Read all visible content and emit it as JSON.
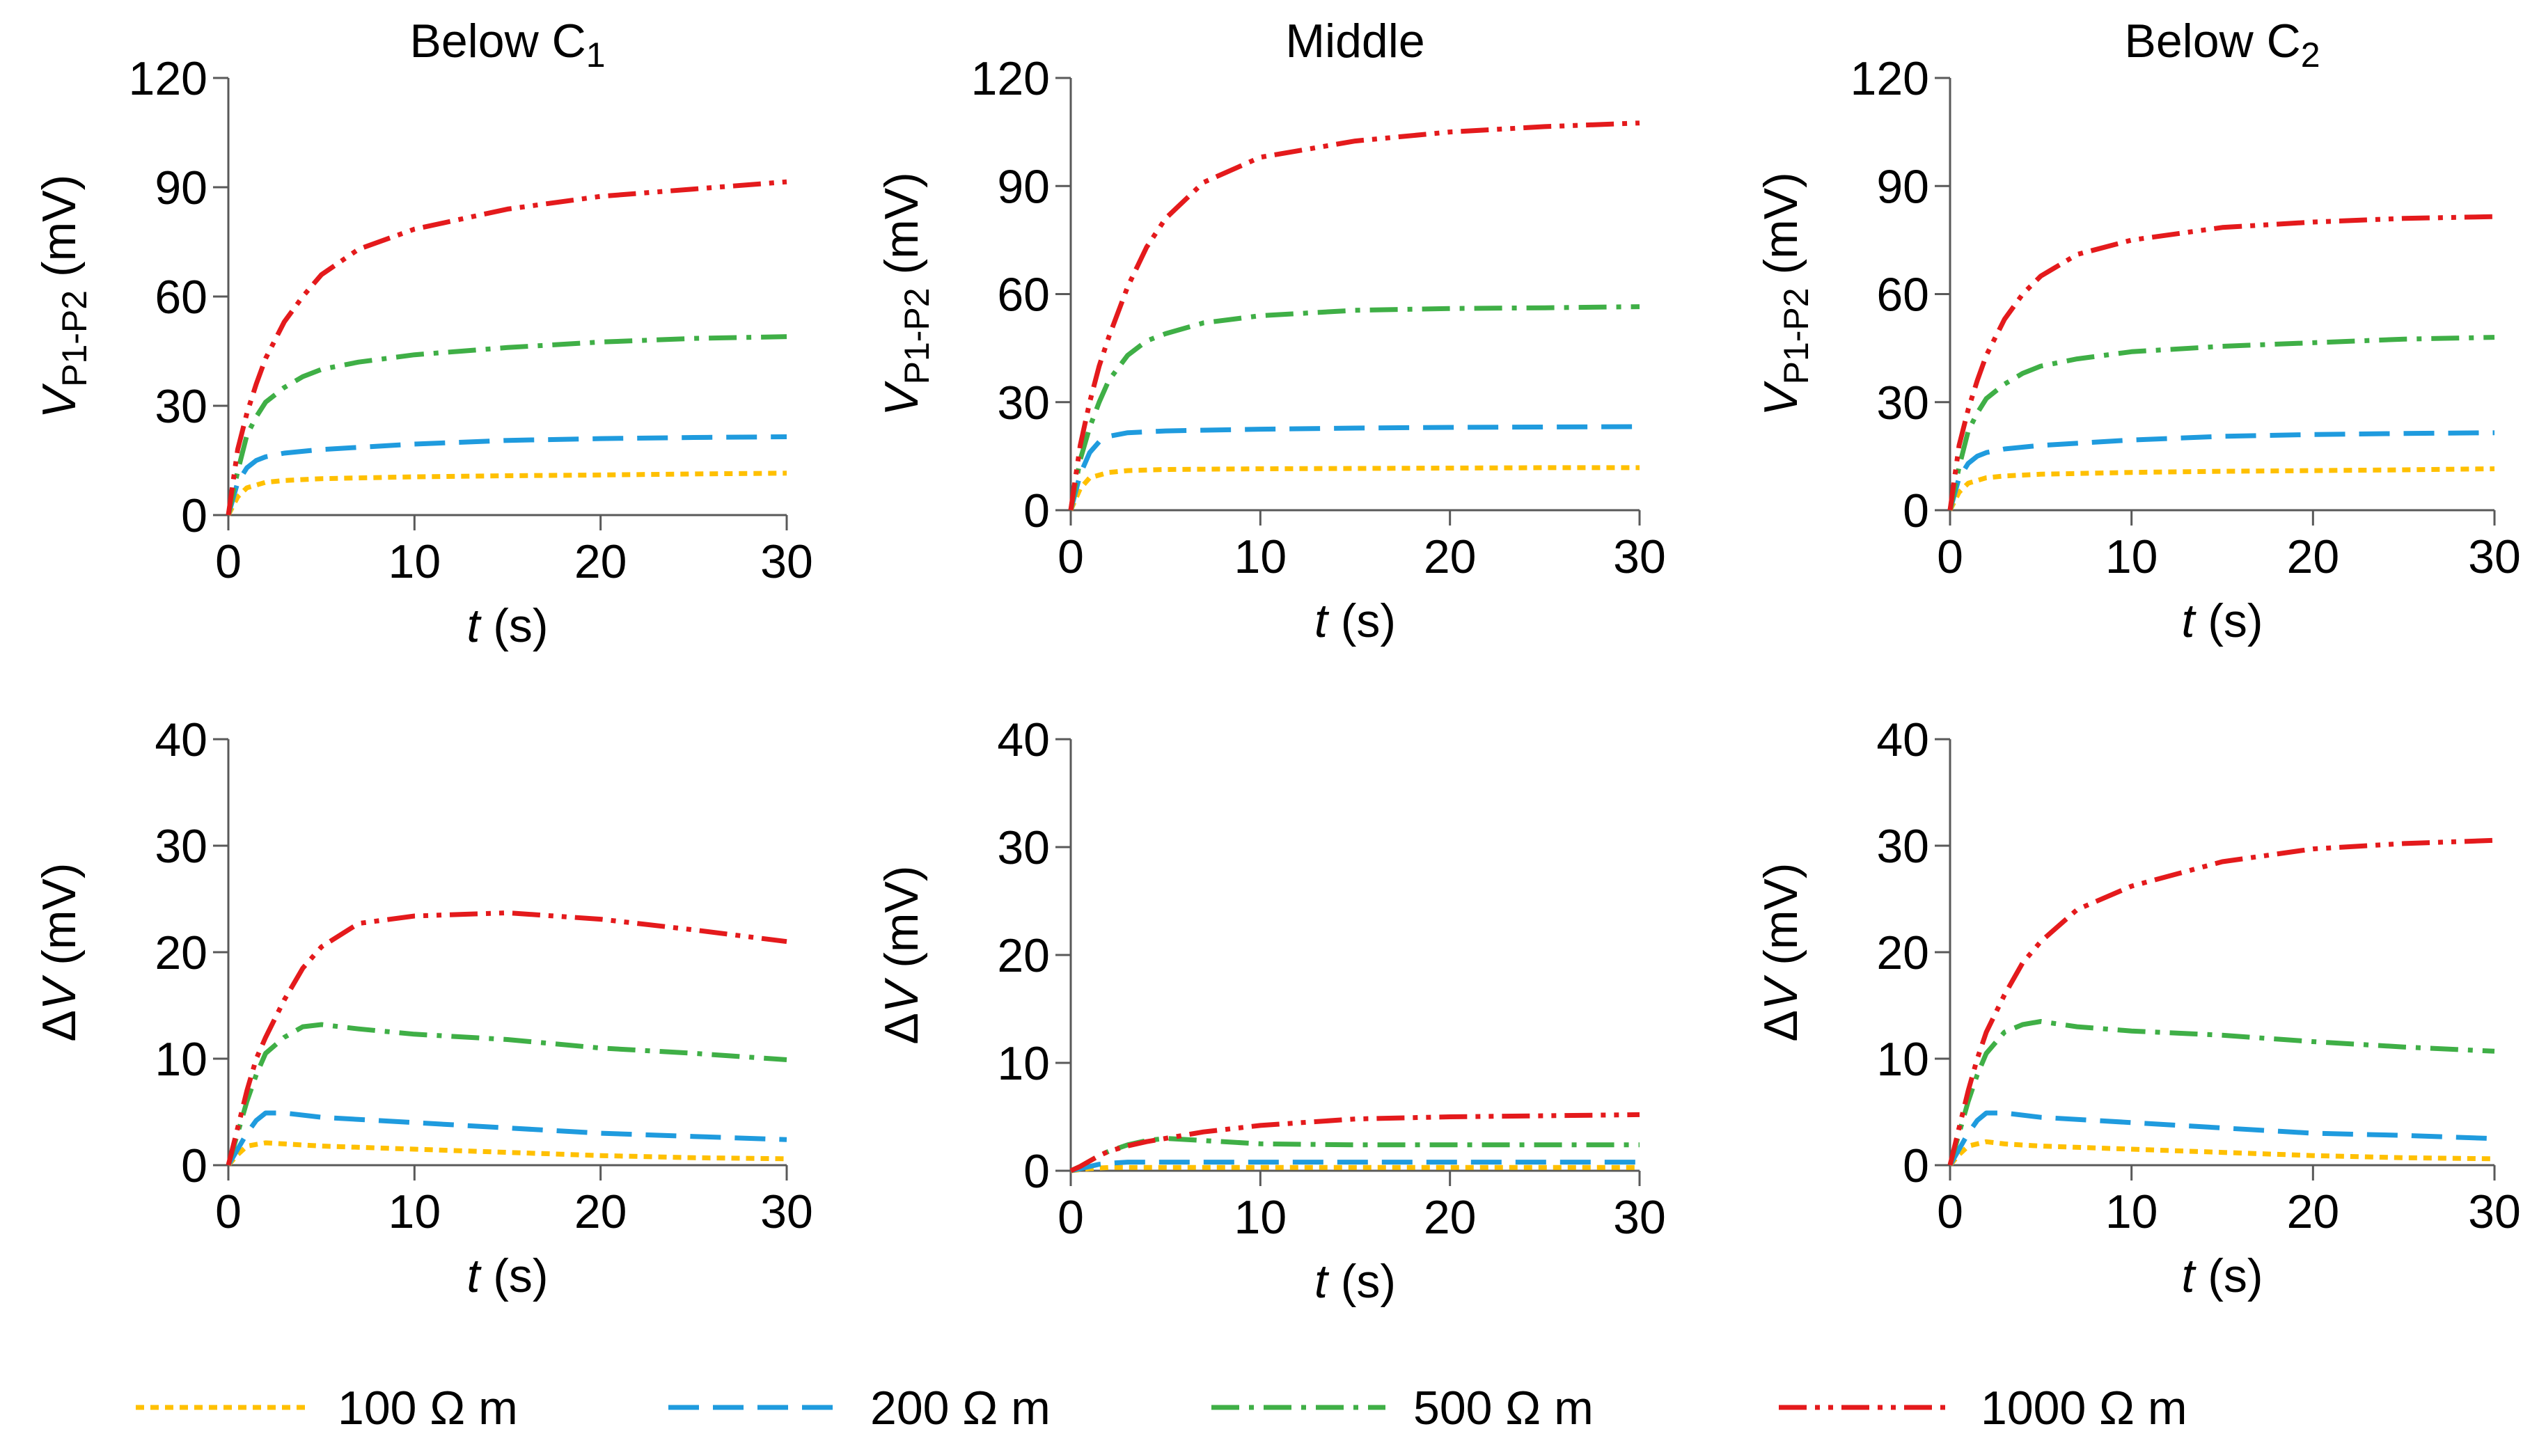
{
  "colors": {
    "r100": "#FFC000",
    "r200": "#1F9BDE",
    "r500": "#3FAF46",
    "r1000": "#E41A1C",
    "axis": "#595959"
  },
  "legend": {
    "items": [
      {
        "key": "r100",
        "label": "100 Ω m"
      },
      {
        "key": "r200",
        "label": "200 Ω m"
      },
      {
        "key": "r500",
        "label": "500 Ω m"
      },
      {
        "key": "r1000",
        "label": "1000 Ω m"
      }
    ]
  },
  "chart_data": [
    {
      "type": "line",
      "id": "p1-below-c1",
      "title": "Below C",
      "title_sub": "1",
      "xlabel": "t",
      "xunit": "(s)",
      "ylabel": "V",
      "ylabel_sub": "P1-P2",
      "yunit": "(mV)",
      "xlim": [
        0,
        30
      ],
      "ylim": [
        0,
        120
      ],
      "xticks": [
        "0",
        "10",
        "20",
        "30"
      ],
      "yticks": [
        "0",
        "30",
        "60",
        "90",
        "120"
      ],
      "series": [
        {
          "name": "100 Ω m",
          "key": "r100",
          "x": [
            0,
            0.5,
            1,
            2,
            3,
            5,
            10,
            15,
            20,
            25,
            30
          ],
          "y": [
            0,
            5,
            7.5,
            9,
            9.5,
            10,
            10.5,
            10.8,
            11,
            11.3,
            11.5
          ]
        },
        {
          "name": "200 Ω m",
          "key": "r200",
          "x": [
            0,
            0.5,
            1,
            1.5,
            2,
            3,
            5,
            10,
            15,
            20,
            25,
            30
          ],
          "y": [
            0,
            9,
            13,
            15,
            16,
            17,
            18,
            19.5,
            20.5,
            21,
            21.3,
            21.5
          ]
        },
        {
          "name": "500 Ω m",
          "key": "r500",
          "x": [
            0,
            0.5,
            1,
            1.5,
            2,
            3,
            4,
            5,
            7,
            10,
            15,
            20,
            25,
            30
          ],
          "y": [
            0,
            12,
            22,
            27,
            31,
            35,
            38,
            40,
            42,
            44,
            46,
            47.5,
            48.5,
            49
          ]
        },
        {
          "name": "1000 Ω m",
          "key": "r1000",
          "x": [
            0,
            0.5,
            1,
            1.5,
            2,
            3,
            4,
            5,
            7,
            10,
            15,
            20,
            25,
            30
          ],
          "y": [
            0,
            18,
            28,
            36,
            43,
            53,
            60,
            66,
            73,
            78.5,
            84,
            87.5,
            89.5,
            91.5
          ]
        }
      ]
    },
    {
      "type": "line",
      "id": "p2-middle",
      "title": "Middle",
      "title_sub": "",
      "xlabel": "t",
      "xunit": "(s)",
      "ylabel": "V",
      "ylabel_sub": "P1-P2",
      "yunit": "(mV)",
      "xlim": [
        0,
        30
      ],
      "ylim": [
        0,
        120
      ],
      "xticks": [
        "0",
        "10",
        "20",
        "30"
      ],
      "yticks": [
        "0",
        "30",
        "60",
        "90",
        "120"
      ],
      "series": [
        {
          "name": "100 Ω m",
          "key": "r100",
          "x": [
            0,
            0.5,
            1,
            2,
            3,
            5,
            10,
            15,
            20,
            25,
            30
          ],
          "y": [
            0,
            6,
            9,
            10.5,
            11,
            11.3,
            11.5,
            11.6,
            11.7,
            11.8,
            11.8
          ]
        },
        {
          "name": "200 Ω m",
          "key": "r200",
          "x": [
            0,
            0.5,
            1,
            1.5,
            2,
            3,
            5,
            10,
            15,
            20,
            25,
            30
          ],
          "y": [
            0,
            10,
            16,
            19,
            20.5,
            21.5,
            22,
            22.5,
            22.8,
            23,
            23.1,
            23.2
          ]
        },
        {
          "name": "500 Ω m",
          "key": "r500",
          "x": [
            0,
            0.5,
            1,
            1.5,
            2,
            3,
            4,
            5,
            7,
            10,
            15,
            20,
            25,
            30
          ],
          "y": [
            0,
            14,
            23,
            30,
            36,
            43,
            47,
            49,
            52,
            54,
            55.5,
            56,
            56.2,
            56.5
          ]
        },
        {
          "name": "1000 Ω m",
          "key": "r1000",
          "x": [
            0,
            0.5,
            1,
            1.5,
            2,
            3,
            4,
            5,
            7,
            10,
            15,
            20,
            25,
            30
          ],
          "y": [
            0,
            18,
            30,
            40,
            48,
            62,
            73,
            81,
            91,
            98,
            102.5,
            105,
            106.5,
            107.5
          ]
        }
      ]
    },
    {
      "type": "line",
      "id": "p3-below-c2",
      "title": "Below C",
      "title_sub": "2",
      "xlabel": "t",
      "xunit": "(s)",
      "ylabel": "V",
      "ylabel_sub": "P1-P2",
      "yunit": "(mV)",
      "xlim": [
        0,
        30
      ],
      "ylim": [
        0,
        120
      ],
      "xticks": [
        "0",
        "10",
        "20",
        "30"
      ],
      "yticks": [
        "0",
        "30",
        "60",
        "90",
        "120"
      ],
      "series": [
        {
          "name": "100 Ω m",
          "key": "r100",
          "x": [
            0,
            0.5,
            1,
            2,
            3,
            5,
            10,
            15,
            20,
            25,
            30
          ],
          "y": [
            0,
            5,
            7.5,
            9,
            9.5,
            10,
            10.5,
            10.8,
            11,
            11.2,
            11.5
          ]
        },
        {
          "name": "200 Ω m",
          "key": "r200",
          "x": [
            0,
            0.5,
            1,
            1.5,
            2,
            3,
            5,
            10,
            15,
            20,
            25,
            30
          ],
          "y": [
            0,
            9,
            13,
            15,
            16,
            17,
            18,
            19.5,
            20.5,
            21,
            21.3,
            21.5
          ]
        },
        {
          "name": "500 Ω m",
          "key": "r500",
          "x": [
            0,
            0.5,
            1,
            1.5,
            2,
            3,
            4,
            5,
            7,
            10,
            15,
            20,
            25,
            30
          ],
          "y": [
            0,
            12,
            22,
            27,
            31,
            35,
            38,
            40,
            42,
            44,
            45.5,
            46.5,
            47.5,
            48
          ]
        },
        {
          "name": "1000 Ω m",
          "key": "r1000",
          "x": [
            0,
            0.5,
            1,
            1.5,
            2,
            3,
            4,
            5,
            7,
            10,
            15,
            20,
            25,
            30
          ],
          "y": [
            0,
            18,
            28,
            36,
            43,
            53,
            60,
            65,
            71,
            75,
            78.5,
            80,
            81,
            81.5
          ]
        }
      ]
    },
    {
      "type": "line",
      "id": "p4-below-c1-dv",
      "title": "",
      "title_sub": "",
      "xlabel": "t",
      "xunit": "(s)",
      "ylabel": "ΔV",
      "ylabel_sub": "",
      "yunit": "(mV)",
      "xlim": [
        0,
        30
      ],
      "ylim": [
        0,
        40
      ],
      "xticks": [
        "0",
        "10",
        "20",
        "30"
      ],
      "yticks": [
        "0",
        "10",
        "20",
        "30",
        "40"
      ],
      "series": [
        {
          "name": "100 Ω m",
          "key": "r100",
          "x": [
            0,
            0.5,
            1,
            2,
            3,
            5,
            10,
            15,
            20,
            25,
            30
          ],
          "y": [
            0,
            1,
            1.8,
            2.1,
            2,
            1.8,
            1.5,
            1.2,
            0.9,
            0.7,
            0.6
          ]
        },
        {
          "name": "200 Ω m",
          "key": "r200",
          "x": [
            0,
            0.5,
            1,
            1.5,
            2,
            3,
            5,
            10,
            15,
            20,
            25,
            30
          ],
          "y": [
            0,
            1.5,
            3,
            4.2,
            4.9,
            4.9,
            4.5,
            4,
            3.5,
            3,
            2.7,
            2.4
          ]
        },
        {
          "name": "500 Ω m",
          "key": "r500",
          "x": [
            0,
            0.5,
            1,
            1.5,
            2,
            3,
            4,
            5,
            7,
            10,
            15,
            20,
            25,
            30
          ],
          "y": [
            0,
            3,
            6,
            8.5,
            10.5,
            12,
            13,
            13.2,
            12.8,
            12.3,
            11.8,
            11,
            10.5,
            9.9
          ]
        },
        {
          "name": "1000 Ω m",
          "key": "r1000",
          "x": [
            0,
            0.5,
            1,
            1.5,
            2,
            3,
            4,
            5,
            7,
            10,
            15,
            20,
            25,
            30
          ],
          "y": [
            0,
            3.5,
            7,
            10,
            12,
            15.5,
            18.5,
            20.5,
            22.7,
            23.4,
            23.7,
            23.1,
            22.1,
            21
          ]
        }
      ]
    },
    {
      "type": "line",
      "id": "p5-middle-dv",
      "title": "",
      "title_sub": "",
      "xlabel": "t",
      "xunit": "(s)",
      "ylabel": "ΔV",
      "ylabel_sub": "",
      "yunit": "(mV)",
      "xlim": [
        0,
        30
      ],
      "ylim": [
        0,
        40
      ],
      "xticks": [
        "0",
        "10",
        "20",
        "30"
      ],
      "yticks": [
        "0",
        "10",
        "20",
        "30",
        "40"
      ],
      "series": [
        {
          "name": "100 Ω m",
          "key": "r100",
          "x": [
            0,
            0.5,
            1,
            2,
            3,
            5,
            10,
            15,
            20,
            25,
            30
          ],
          "y": [
            0,
            0.1,
            0.2,
            0.3,
            0.3,
            0.3,
            0.3,
            0.3,
            0.3,
            0.3,
            0.3
          ]
        },
        {
          "name": "200 Ω m",
          "key": "r200",
          "x": [
            0,
            0.5,
            1,
            1.5,
            2,
            3,
            5,
            10,
            15,
            20,
            25,
            30
          ],
          "y": [
            0,
            0.2,
            0.4,
            0.6,
            0.7,
            0.8,
            0.8,
            0.8,
            0.8,
            0.8,
            0.8,
            0.8
          ]
        },
        {
          "name": "500 Ω m",
          "key": "r500",
          "x": [
            0,
            0.5,
            1,
            1.5,
            2,
            3,
            4,
            5,
            7,
            10,
            15,
            20,
            25,
            30
          ],
          "y": [
            0,
            0.4,
            0.9,
            1.4,
            1.8,
            2.4,
            2.8,
            3,
            2.8,
            2.5,
            2.4,
            2.4,
            2.4,
            2.4
          ]
        },
        {
          "name": "1000 Ω m",
          "key": "r1000",
          "x": [
            0,
            0.5,
            1,
            1.5,
            2,
            3,
            4,
            5,
            7,
            10,
            15,
            20,
            25,
            30
          ],
          "y": [
            0,
            0.4,
            0.9,
            1.4,
            1.8,
            2.3,
            2.7,
            3,
            3.6,
            4.2,
            4.8,
            5,
            5.1,
            5.2
          ]
        }
      ]
    },
    {
      "type": "line",
      "id": "p6-below-c2-dv",
      "title": "",
      "title_sub": "",
      "xlabel": "t",
      "xunit": "(s)",
      "ylabel": "ΔV",
      "ylabel_sub": "",
      "yunit": "(mV)",
      "xlim": [
        0,
        30
      ],
      "ylim": [
        0,
        40
      ],
      "xticks": [
        "0",
        "10",
        "20",
        "30"
      ],
      "yticks": [
        "0",
        "10",
        "20",
        "30",
        "40"
      ],
      "series": [
        {
          "name": "100 Ω m",
          "key": "r100",
          "x": [
            0,
            0.5,
            1,
            2,
            3,
            5,
            10,
            15,
            20,
            25,
            30
          ],
          "y": [
            0,
            1,
            1.8,
            2.2,
            2,
            1.8,
            1.5,
            1.2,
            0.9,
            0.7,
            0.6
          ]
        },
        {
          "name": "200 Ω m",
          "key": "r200",
          "x": [
            0,
            0.5,
            1,
            1.5,
            2,
            3,
            5,
            10,
            15,
            20,
            25,
            30
          ],
          "y": [
            0,
            1.5,
            3,
            4.2,
            4.9,
            4.9,
            4.5,
            4,
            3.5,
            3,
            2.8,
            2.5
          ]
        },
        {
          "name": "500 Ω m",
          "key": "r500",
          "x": [
            0,
            0.5,
            1,
            1.5,
            2,
            3,
            4,
            5,
            7,
            10,
            15,
            20,
            25,
            30
          ],
          "y": [
            0,
            3,
            6,
            8.5,
            10.5,
            12.5,
            13.2,
            13.5,
            13,
            12.6,
            12.2,
            11.6,
            11.1,
            10.7
          ]
        },
        {
          "name": "1000 Ω m",
          "key": "r1000",
          "x": [
            0,
            0.5,
            1,
            1.5,
            2,
            3,
            4,
            5,
            7,
            10,
            15,
            20,
            25,
            30
          ],
          "y": [
            0,
            3.5,
            7,
            10,
            12.5,
            16,
            19,
            21,
            24,
            26.2,
            28.5,
            29.7,
            30.2,
            30.5
          ]
        }
      ]
    }
  ]
}
